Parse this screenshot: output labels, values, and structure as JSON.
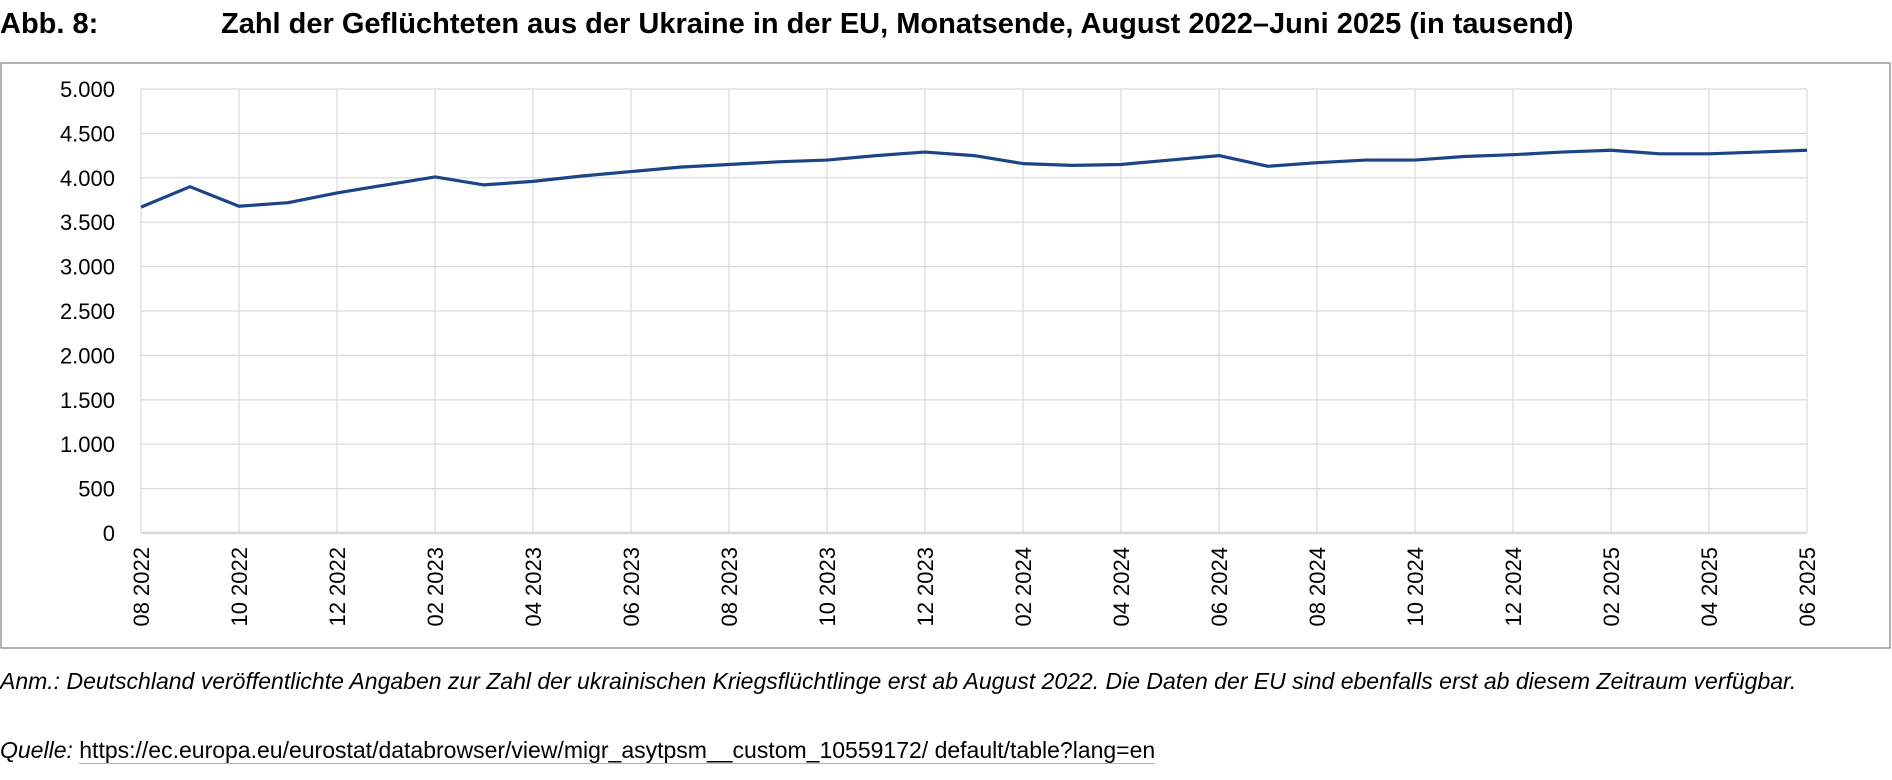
{
  "chart_data": {
    "type": "line",
    "figure_label": "Abb. 8:",
    "title": "Zahl der Geflüchteten aus der Ukraine in der EU, Monatsende, August 2022–Juni 2025 (in tausend)",
    "categories": [
      "08 2022",
      null,
      "10 2022",
      null,
      "12 2022",
      null,
      "02 2023",
      null,
      "04 2023",
      null,
      "06 2023",
      null,
      "08 2023",
      null,
      "10 2023",
      null,
      "12 2023",
      null,
      "02 2024",
      null,
      "04 2024",
      null,
      "06 2024",
      null,
      "08 2024",
      null,
      "10 2024",
      null,
      "12 2024",
      null,
      "02 2025",
      null,
      "04 2025",
      null,
      "06 2025"
    ],
    "values": [
      3670,
      3900,
      3680,
      3720,
      3830,
      3920,
      4010,
      3920,
      3960,
      4020,
      4070,
      4120,
      4150,
      4180,
      4200,
      4250,
      4290,
      4250,
      4160,
      4140,
      4150,
      4200,
      4250,
      4130,
      4170,
      4200,
      4200,
      4240,
      4260,
      4290,
      4310,
      4270,
      4270,
      4290,
      4310
    ],
    "color": "#1c4587",
    "ylim": [
      0,
      5000
    ],
    "yticks": [
      0,
      500,
      {
        "value": 1000,
        "label": "1.000"
      },
      {
        "value": 1500,
        "label": "1.500"
      },
      {
        "value": 2000,
        "label": "2.000"
      },
      {
        "value": 2500,
        "label": "2.500"
      },
      {
        "value": 3000,
        "label": "3.000"
      },
      {
        "value": 3500,
        "label": "3.500"
      },
      {
        "value": 4000,
        "label": "4.000"
      },
      {
        "value": 4500,
        "label": "4.500"
      },
      {
        "value": 5000,
        "label": "5.000"
      }
    ],
    "grid": true,
    "note": "Anm.: Deutschland veröffentlichte Angaben zur Zahl der ukrainischen Kriegsflüchtlinge erst ab August 2022. Die Daten der EU sind ebenfalls erst ab diesem Zeitraum verfügbar.",
    "source_label": "Quelle:",
    "source_url": "https://ec.europa.eu/eurostat/databrowser/view/migr_asytpsm__custom_10559172/ default/table?lang=en"
  }
}
